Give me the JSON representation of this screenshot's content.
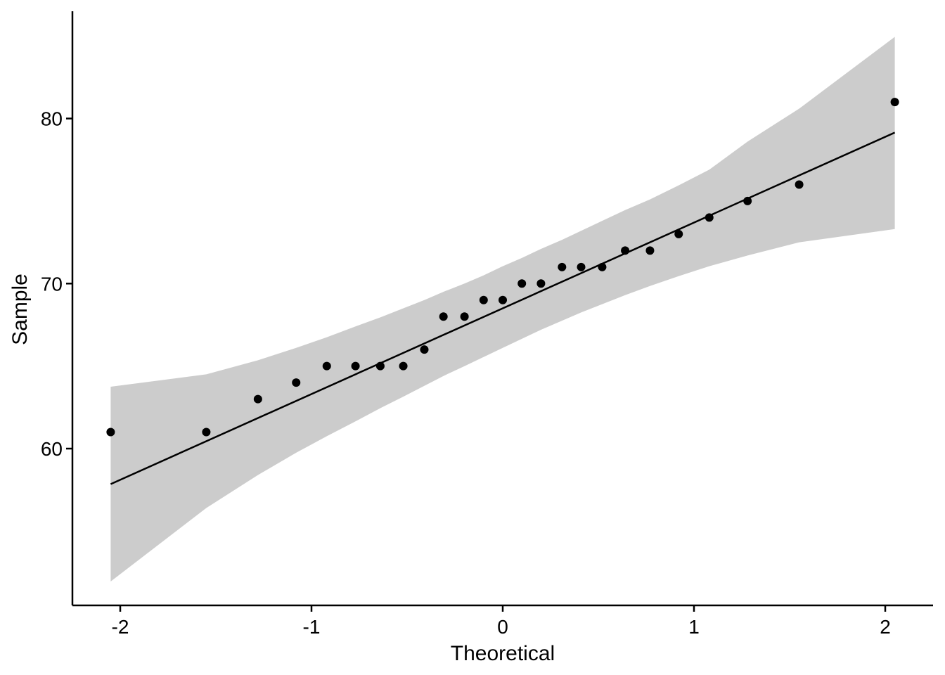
{
  "chart_data": {
    "type": "scatter",
    "title": "",
    "xlabel": "Theoretical",
    "ylabel": "Sample",
    "xlim": [
      -2.25,
      2.25
    ],
    "ylim": [
      50.5,
      86.5
    ],
    "x_ticks": [
      -2,
      -1,
      0,
      1,
      2
    ],
    "x_tick_labels": [
      "-2",
      "-1",
      "0",
      "1",
      "2"
    ],
    "y_ticks": [
      60,
      70,
      80
    ],
    "y_tick_labels": [
      "60",
      "70",
      "80"
    ],
    "grid": false,
    "legend": "none",
    "points": {
      "x": [
        -2.05,
        -1.55,
        -1.28,
        -1.08,
        -0.92,
        -0.77,
        -0.64,
        -0.52,
        -0.41,
        -0.31,
        -0.2,
        -0.1,
        0.0,
        0.1,
        0.2,
        0.31,
        0.41,
        0.52,
        0.64,
        0.77,
        0.92,
        1.08,
        1.28,
        1.55,
        2.05
      ],
      "y": [
        61,
        61,
        63,
        64,
        65,
        65,
        65,
        65,
        66,
        68,
        68,
        69,
        69,
        70,
        70,
        71,
        71,
        71,
        72,
        72,
        73,
        74,
        75,
        76,
        81
      ]
    },
    "reference_line": {
      "x": [
        -2.05,
        2.05
      ],
      "y": [
        57.85,
        79.15
      ]
    },
    "confidence_band": {
      "x": [
        -2.05,
        -1.55,
        -1.28,
        -1.08,
        -0.92,
        -0.77,
        -0.64,
        -0.52,
        -0.41,
        -0.31,
        -0.2,
        -0.1,
        0.0,
        0.1,
        0.2,
        0.31,
        0.41,
        0.52,
        0.64,
        0.77,
        0.92,
        1.08,
        1.28,
        1.55,
        2.05
      ],
      "lower": [
        51.95,
        56.4,
        58.4,
        59.75,
        60.75,
        61.65,
        62.45,
        63.15,
        63.8,
        64.4,
        65.0,
        65.55,
        66.1,
        66.65,
        67.2,
        67.75,
        68.25,
        68.75,
        69.3,
        69.85,
        70.45,
        71.05,
        71.7,
        72.5,
        73.3
      ],
      "upper": [
        63.75,
        64.5,
        65.35,
        66.1,
        66.75,
        67.4,
        67.95,
        68.5,
        69.0,
        69.5,
        70.0,
        70.5,
        71.05,
        71.55,
        72.1,
        72.65,
        73.2,
        73.8,
        74.45,
        75.1,
        75.95,
        76.9,
        78.6,
        80.6,
        84.95
      ]
    },
    "colors": {
      "points": "#000000",
      "line": "#000000",
      "band": "#cccccc",
      "axis": "#000000"
    }
  }
}
